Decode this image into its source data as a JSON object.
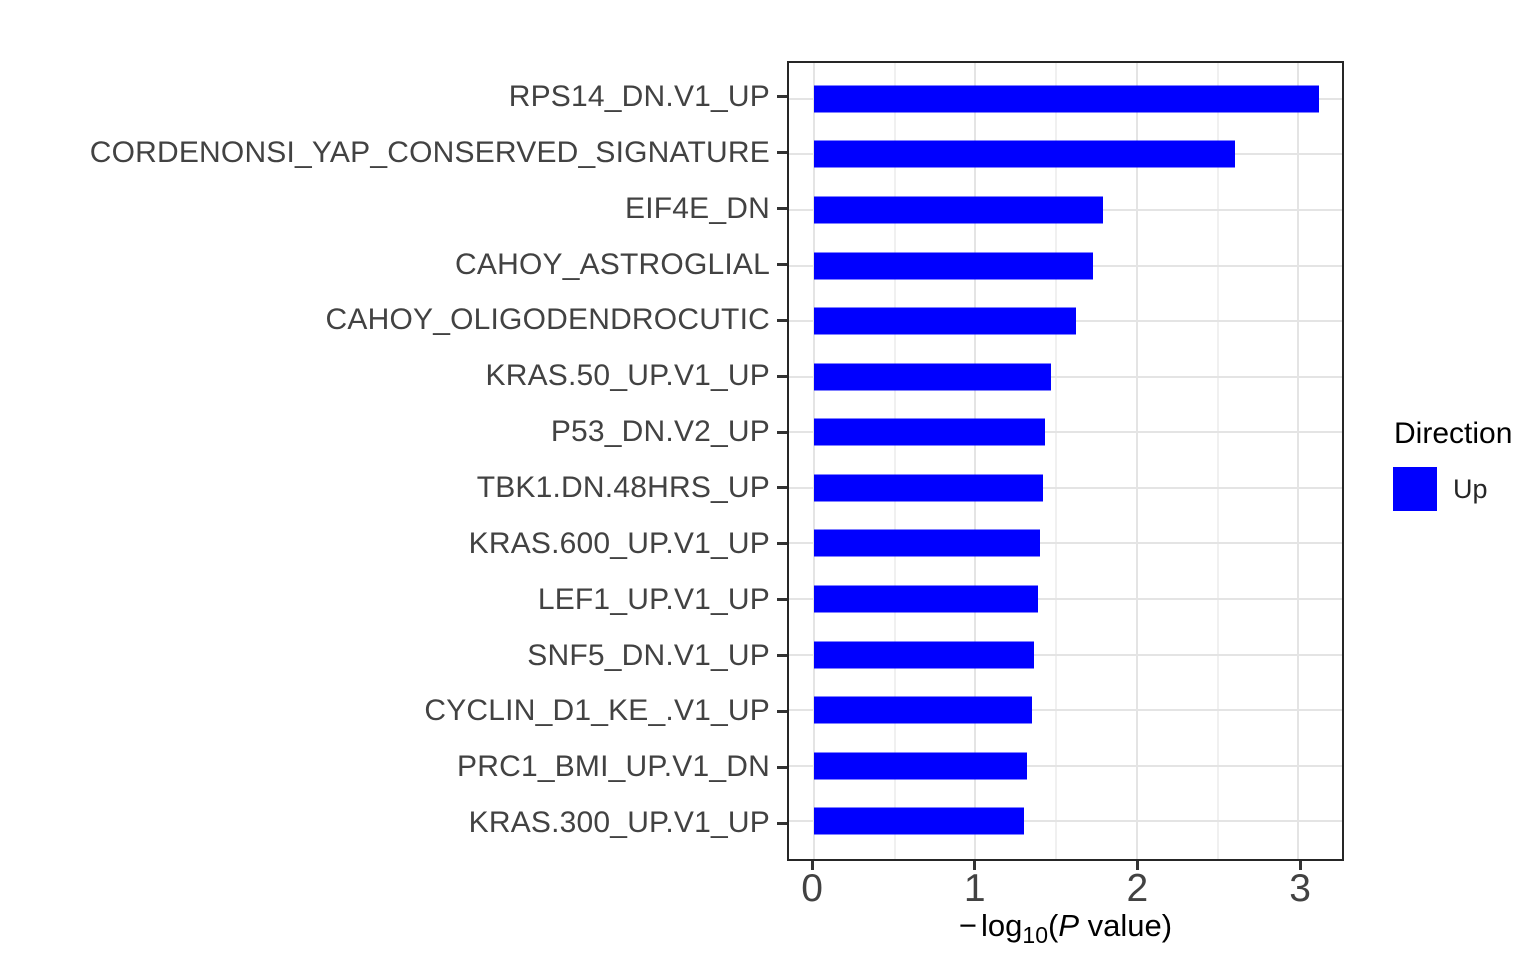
{
  "chart_data": {
    "type": "bar",
    "orientation": "horizontal",
    "title": "",
    "xlabel": "-log10(P value)",
    "xlabel_parts": {
      "minus": "−",
      "log": "log",
      "sub": "10",
      "open": "(",
      "p": "P",
      "rest": " value)"
    },
    "categories": [
      "RPS14_DN.V1_UP",
      "CORDENONSI_YAP_CONSERVED_SIGNATURE",
      "EIF4E_DN",
      "CAHOY_ASTROGLIAL",
      "CAHOY_OLIGODENDROCUTIC",
      "KRAS.50_UP.V1_UP",
      "P53_DN.V2_UP",
      "TBK1.DN.48HRS_UP",
      "KRAS.600_UP.V1_UP",
      "LEF1_UP.V1_UP",
      "SNF5_DN.V1_UP",
      "CYCLIN_D1_KE_.V1_UP",
      "PRC1_BMI_UP.V1_DN",
      "KRAS.300_UP.V1_UP"
    ],
    "values": [
      3.13,
      2.61,
      1.79,
      1.73,
      1.62,
      1.47,
      1.43,
      1.42,
      1.4,
      1.39,
      1.36,
      1.35,
      1.32,
      1.3
    ],
    "x_ticks": [
      0,
      1,
      2,
      3
    ],
    "x_minor_gridlines": [
      0.5,
      1.5,
      2.5
    ],
    "xlim": [
      -0.154,
      3.27
    ],
    "bar_color": "#0000ff",
    "grid": true,
    "legend_position": "right",
    "legend": {
      "title": "Direction",
      "items": [
        {
          "label": "Up",
          "color": "#0000ff"
        }
      ]
    }
  }
}
